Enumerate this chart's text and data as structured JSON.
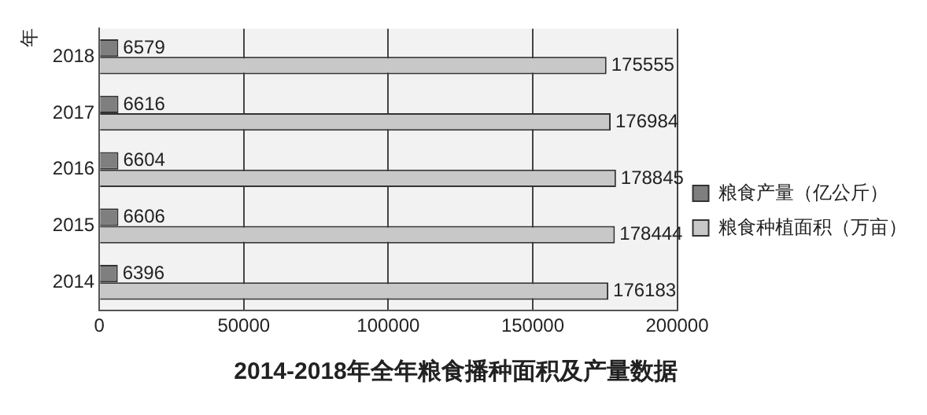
{
  "chart_data": {
    "type": "bar",
    "orientation": "horizontal",
    "title": "2014-2018年全年粮食播种面积及产量数据",
    "ylabel": "年",
    "categories": [
      "2018",
      "2017",
      "2016",
      "2015",
      "2014"
    ],
    "series": [
      {
        "name": "粮食产量（亿公斤）",
        "color": "#7f7f7f",
        "values": [
          6579,
          6616,
          6604,
          6606,
          6396
        ]
      },
      {
        "name": "粮食种植面积（万亩）",
        "color": "#c8c8c8",
        "values": [
          175555,
          176984,
          178845,
          178444,
          176183
        ]
      }
    ],
    "xlim": [
      0,
      200000
    ],
    "xticks": [
      0,
      50000,
      100000,
      150000,
      200000
    ],
    "grid": "x",
    "legend": "right",
    "data_labels": true
  }
}
